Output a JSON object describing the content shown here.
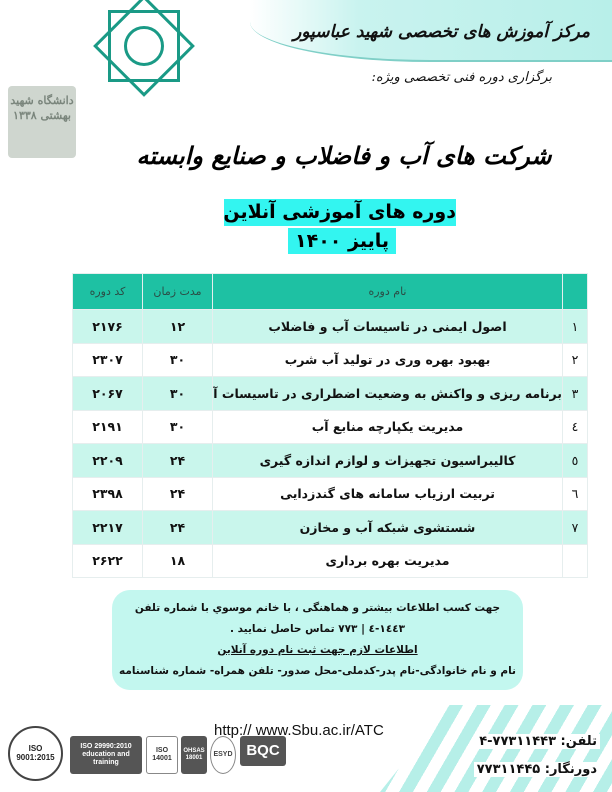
{
  "header": {
    "center_name": "مرکز آموزش های تخصصی شهید عباسپور",
    "subheading": "برگزاری دوره فنی تخصصی ویژه:"
  },
  "logos": {
    "university": "دانشگاه شهید بهشتی ۱۳۳۸"
  },
  "title": {
    "main": "شرکت های آب و فاضلاب و صنایع وابسته",
    "line1": "دوره های آموزشی آنلاین",
    "line2": "پاییز ۱۴۰۰"
  },
  "table": {
    "headers": {
      "name": "نام دوره",
      "duration": "مدت زمان",
      "code": "کد دوره"
    },
    "rows": [
      {
        "num": "۱",
        "name": "اصول ایمنی در تاسیسات آب و فاضلاب",
        "duration": "۱۲",
        "code": "۲۱۷۶"
      },
      {
        "num": "۲",
        "name": "بهبود بهره وری در تولید آب شرب",
        "duration": "۳۰",
        "code": "۲۳۰۷"
      },
      {
        "num": "۳",
        "name": "برنامه ریزی و واکنش به وضعیت اضطراری در تاسیسات آب",
        "duration": "۳۰",
        "code": "۲۰۶۷"
      },
      {
        "num": "٤",
        "name": "مدیریت یکپارچه منابع آب",
        "duration": "۳۰",
        "code": "۲۱۹۱"
      },
      {
        "num": "٥",
        "name": "کالیبراسیون تجهیزات و لوازم اندازه گیری",
        "duration": "۲۴",
        "code": "۲۲۰۹"
      },
      {
        "num": "٦",
        "name": "تربیت ارزیاب سامانه های گندزدایی",
        "duration": "۲۴",
        "code": "۲۳۹۸"
      },
      {
        "num": "۷",
        "name": "شستشوی شبکه آب و مخازن",
        "duration": "۲۴",
        "code": "۲۲۱۷"
      },
      {
        "num": "",
        "name": "مدیریت بهره برداری",
        "duration": "۱۸",
        "code": "۲۶۲۲"
      }
    ]
  },
  "info": {
    "line1": "جهت کسب اطلاعات بیشتر و هماهنگی ، با خانم موسوي  با شماره تلفن",
    "line2": "۱٤٤۳-٤ | ۷۷۳ تماس حاصل نمایید .",
    "line3": "اطلاعات لازم جهت ثبت نام دوره آنلاین",
    "line4": "نام و نام خانوادگی-نام پدر-کدملی-محل صدور- تلفن همراه- شماره شناسنامه"
  },
  "footer": {
    "url": "http:// www.Sbu.ac.ir/ATC",
    "phone": "تلفن:  ۷۷۳۱۱۴۴۳-۴",
    "fax": "دورنگار: ۷۷۳۱۱۴۴۵",
    "certs": [
      "ISO 9001:2015",
      "ISO 29990:2010 education and training",
      "ISO 14001",
      "OHSAS 18001",
      "ESYD",
      "BQC"
    ]
  },
  "colors": {
    "table_header": "#1ec1a3",
    "row_alt": "#c9f6ec",
    "highlight": "#33f5f0",
    "info_box": "#c3f7ef"
  }
}
